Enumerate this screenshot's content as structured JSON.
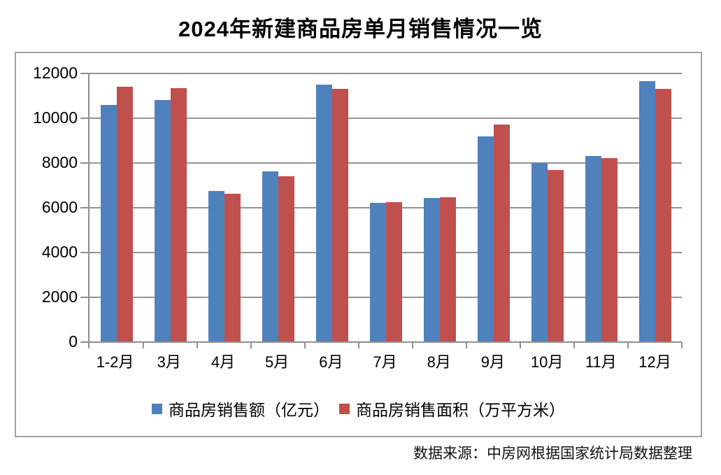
{
  "page": {
    "title": "2024年新建商品房单月销售情况一览",
    "source_note": "数据来源：中房网根据国家统计局数据整理"
  },
  "colors": {
    "series_sales_amount": "#4f81bd",
    "series_sales_area": "#c0504d",
    "gridline": "#949494",
    "axis": "#8f8f8f",
    "frame_border": "#a1a1a1",
    "text": "#000000"
  },
  "chart_data": {
    "type": "bar",
    "title": "2024年新建商品房单月销售情况一览",
    "categories": [
      "1-2月",
      "3月",
      "4月",
      "5月",
      "6月",
      "7月",
      "8月",
      "9月",
      "10月",
      "11月",
      "12月"
    ],
    "series": [
      {
        "name": "商品房销售额（亿元）",
        "color": "#4f81bd",
        "values": [
          10566,
          10789,
          6712,
          7598,
          11468,
          6197,
          6393,
          9157,
          7975,
          8270,
          11625
        ]
      },
      {
        "name": "商品房销售面积（万平方米）",
        "color": "#c0504d",
        "values": [
          11369,
          11299,
          6584,
          7390,
          11274,
          6233,
          6453,
          9682,
          7646,
          8188,
          11267
        ]
      }
    ],
    "xlabel": "",
    "ylabel": "",
    "ylim": [
      0,
      12000
    ],
    "y_ticks": [
      0,
      2000,
      4000,
      6000,
      8000,
      10000,
      12000
    ],
    "grid": "horizontal",
    "legend_position": "bottom",
    "source": "数据来源：中房网根据国家统计局数据整理"
  }
}
